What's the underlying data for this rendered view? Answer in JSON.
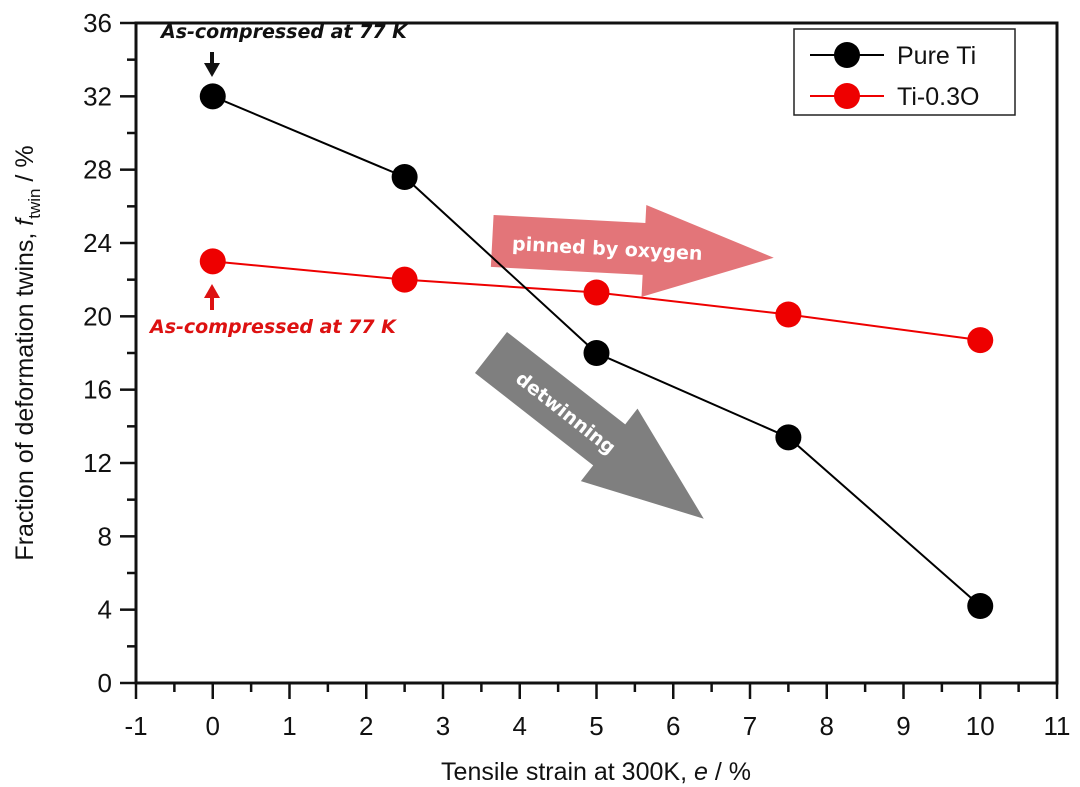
{
  "chart_data": {
    "type": "line",
    "title": "",
    "xlabel": "Tensile strain at 300K, e / %",
    "xlabel_parts": {
      "prefix": "Tensile strain at 300K, ",
      "var": "e",
      "suffix": " / %"
    },
    "ylabel": "Fraction of deformation twins, f_twin / %",
    "ylabel_parts": {
      "prefix": "Fraction of deformation twins, ",
      "var": "f",
      "sub": "twin",
      "suffix": " / %"
    },
    "xlim": [
      -1,
      11
    ],
    "ylim": [
      0,
      36
    ],
    "xticks": [
      -1,
      0,
      1,
      2,
      3,
      4,
      5,
      6,
      7,
      8,
      9,
      10,
      11
    ],
    "yticks": [
      0,
      4,
      8,
      12,
      16,
      20,
      24,
      28,
      32,
      36
    ],
    "grid": false,
    "legend_position": "top-right",
    "series": [
      {
        "name": "Pure Ti",
        "color": "#000000",
        "x": [
          0,
          2.5,
          5,
          7.5,
          10
        ],
        "y": [
          32.0,
          27.6,
          18.0,
          13.4,
          4.2
        ]
      },
      {
        "name": "Ti-0.3O",
        "color": "#ee0000",
        "x": [
          0,
          2.5,
          5,
          7.5,
          10
        ],
        "y": [
          23.0,
          22.0,
          21.3,
          20.1,
          18.7
        ]
      }
    ],
    "annotations": [
      {
        "text": "As-compressed at 77 K",
        "color": "#111111",
        "points_to": {
          "x": 0,
          "y": 32.0
        }
      },
      {
        "text": "As-compressed at 77 K",
        "color": "#dd1111",
        "points_to": {
          "x": 0,
          "y": 23.0
        }
      },
      {
        "text": "pinned by oxygen",
        "color": "#e06a6e",
        "kind": "arrow"
      },
      {
        "text": "detwinning",
        "color": "#808080",
        "kind": "arrow"
      }
    ]
  }
}
